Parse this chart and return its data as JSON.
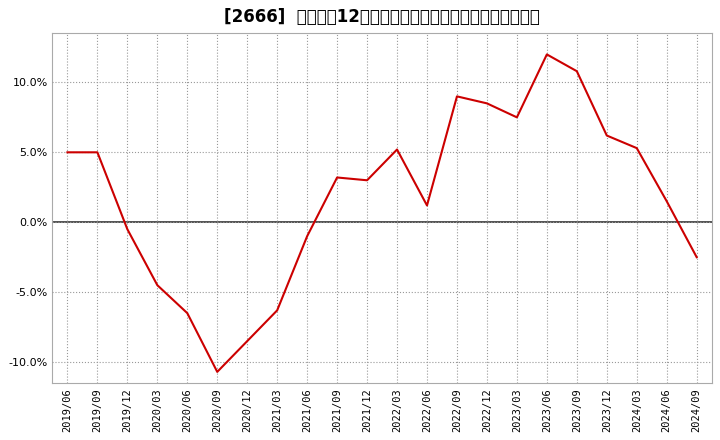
{
  "title": "[2666]  売上高の12か月移動合計の対前年同期増減率の推移",
  "line_color": "#cc0000",
  "bg_color": "#ffffff",
  "plot_bg_color": "#ffffff",
  "grid_color": "#999999",
  "zero_line_color": "#333333",
  "ylim": [
    -0.115,
    0.135
  ],
  "yticks": [
    -0.1,
    -0.05,
    0.0,
    0.05,
    0.1
  ],
  "xtick_labels": [
    "2019/06",
    "2019/09",
    "2019/12",
    "2020/03",
    "2020/06",
    "2020/09",
    "2020/12",
    "2021/03",
    "2021/06",
    "2021/09",
    "2021/12",
    "2022/03",
    "2022/06",
    "2022/09",
    "2022/12",
    "2023/03",
    "2023/06",
    "2023/09",
    "2023/12",
    "2024/03",
    "2024/06",
    "2024/09"
  ],
  "data_x": [
    "2019/06",
    "2019/09",
    "2019/12",
    "2020/03",
    "2020/06",
    "2020/09",
    "2020/12",
    "2021/03",
    "2021/06",
    "2021/09",
    "2021/12",
    "2022/03",
    "2022/06",
    "2022/09",
    "2022/12",
    "2023/03",
    "2023/06",
    "2023/09",
    "2023/12",
    "2024/03",
    "2024/06",
    "2024/09"
  ],
  "data_y": [
    0.05,
    0.05,
    -0.005,
    -0.045,
    -0.065,
    -0.107,
    -0.085,
    -0.063,
    -0.01,
    0.032,
    0.03,
    0.052,
    0.012,
    0.09,
    0.085,
    0.075,
    0.12,
    0.108,
    0.062,
    0.053,
    0.015,
    -0.025
  ],
  "title_fontsize": 12,
  "tick_fontsize": 7.5,
  "ytick_fontsize": 8
}
